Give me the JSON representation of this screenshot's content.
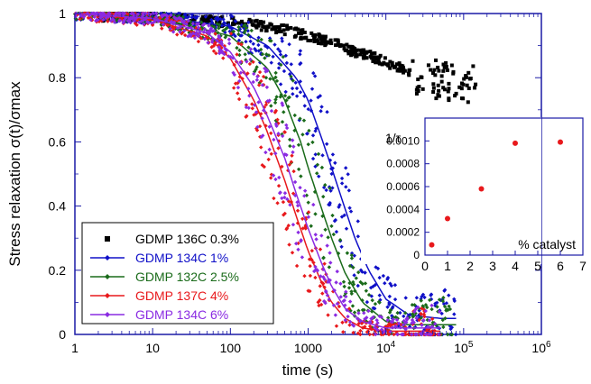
{
  "chart_data": {
    "type": "scatter",
    "xlabel": "time (s)",
    "ylabel": "Stress relaxation σ(t)/σmax",
    "xscale": "log",
    "xlim": [
      1,
      1000000
    ],
    "ylim": [
      0,
      1
    ],
    "xtick_labels": [
      "1",
      "10",
      "100",
      "1000",
      "10^4",
      "10^5",
      "10^6"
    ],
    "xtick_values": [
      1,
      10,
      100,
      1000,
      10000,
      100000,
      1000000
    ],
    "ytick_labels": [
      "0",
      "0.2",
      "0.4",
      "0.6",
      "0.8",
      "1"
    ],
    "ytick_values": [
      0,
      0.2,
      0.4,
      0.6,
      0.8,
      1
    ],
    "legend_position": "lower-left",
    "series": [
      {
        "name": "GDMP 136C 0.3%",
        "color": "#000000",
        "marker": "square",
        "fit": false,
        "x": [
          2,
          5,
          10,
          20,
          40,
          80,
          150,
          300,
          600,
          1000,
          2000,
          4000,
          8000,
          15000,
          30000,
          60000,
          100000,
          150000
        ],
        "y": [
          0.99,
          0.99,
          0.99,
          0.985,
          0.98,
          0.975,
          0.97,
          0.96,
          0.945,
          0.93,
          0.91,
          0.88,
          0.86,
          0.83,
          0.8,
          0.79,
          0.78,
          0.78
        ]
      },
      {
        "name": "GDMP 134C 1%",
        "color": "#1010c8",
        "marker": "diamond",
        "fit": true,
        "x": [
          1,
          10,
          100,
          300,
          700,
          1000,
          1500,
          2000,
          3000,
          4000,
          6000,
          10000,
          20000,
          50000,
          80000
        ],
        "y": [
          1.0,
          0.99,
          0.96,
          0.9,
          0.8,
          0.73,
          0.61,
          0.52,
          0.39,
          0.3,
          0.2,
          0.11,
          0.06,
          0.05,
          0.05
        ]
      },
      {
        "name": "GDMP 132C 2.5%",
        "color": "#1a6b1a",
        "marker": "diamond",
        "fit": true,
        "x": [
          1,
          10,
          100,
          300,
          500,
          800,
          1000,
          1500,
          2000,
          3000,
          5000,
          10000,
          20000,
          50000,
          80000
        ],
        "y": [
          1.0,
          0.99,
          0.93,
          0.83,
          0.73,
          0.6,
          0.52,
          0.39,
          0.3,
          0.19,
          0.1,
          0.04,
          0.03,
          0.03,
          0.03
        ]
      },
      {
        "name": "GDMP 137C 4%",
        "color": "#e8191c",
        "marker": "diamond",
        "fit": true,
        "x": [
          1,
          10,
          50,
          100,
          200,
          300,
          500,
          700,
          1000,
          1500,
          2000,
          3000,
          5000,
          10000,
          50000
        ],
        "y": [
          1.0,
          0.98,
          0.93,
          0.86,
          0.73,
          0.63,
          0.48,
          0.37,
          0.26,
          0.16,
          0.1,
          0.05,
          0.02,
          0.01,
          0.01
        ]
      },
      {
        "name": "GDMP 134C 6%",
        "color": "#8a2be2",
        "marker": "diamond",
        "fit": true,
        "x": [
          1,
          10,
          50,
          100,
          200,
          300,
          500,
          700,
          1000,
          1500,
          2000,
          3000,
          5000,
          10000,
          50000
        ],
        "y": [
          1.0,
          0.985,
          0.94,
          0.88,
          0.77,
          0.68,
          0.55,
          0.44,
          0.33,
          0.22,
          0.15,
          0.08,
          0.04,
          0.02,
          0.02
        ]
      }
    ],
    "inset": {
      "type": "scatter",
      "ylabel": "1/τ",
      "xlabel": "% catalyst",
      "xlim": [
        0,
        7
      ],
      "ylim": [
        0,
        0.0012
      ],
      "xtick_labels": [
        "0",
        "1",
        "2",
        "3",
        "4",
        "5",
        "6",
        "7"
      ],
      "ytick_labels": [
        "0",
        "0.0002",
        "0.0004",
        "0.0006",
        "0.0008",
        "0.0010"
      ],
      "ytick_values": [
        0,
        0.0002,
        0.0004,
        0.0006,
        0.0008,
        0.001
      ],
      "color": "#e8191c",
      "x": [
        0.3,
        1,
        2.5,
        4,
        6
      ],
      "y": [
        9e-05,
        0.00032,
        0.00058,
        0.00098,
        0.00099
      ]
    }
  }
}
